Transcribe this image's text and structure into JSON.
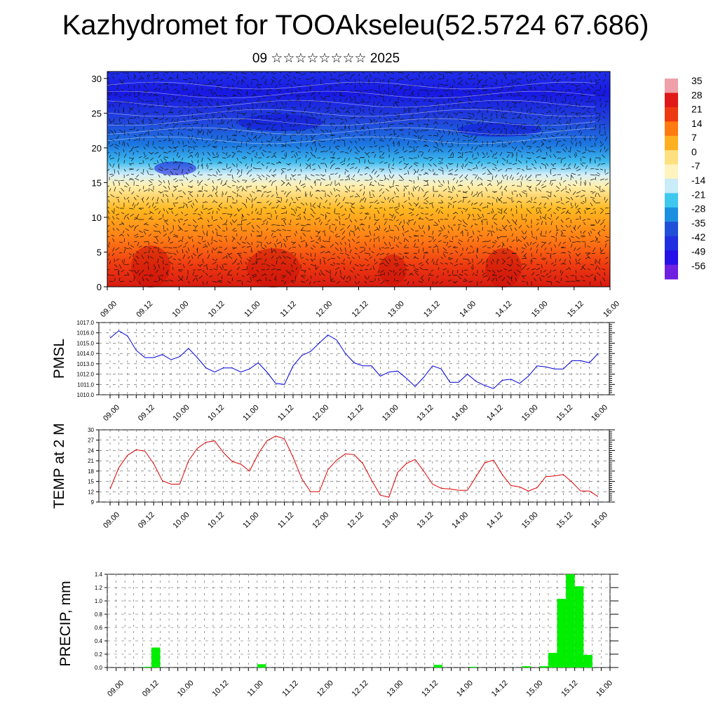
{
  "title": "Kazhydromet for TOOAkseleu(52.5724 67.686)",
  "subtitle": "09 ☆☆☆☆☆☆☆☆ 2025",
  "time_labels": [
    "09.00",
    "09.12",
    "10.00",
    "10.12",
    "11.00",
    "11.12",
    "12.00",
    "12.12",
    "13.00",
    "13.12",
    "14.00",
    "14.12",
    "15.00",
    "15.12",
    "16.00"
  ],
  "chart_data": [
    {
      "type": "heatmap",
      "name": "cross-section",
      "y_ticks": [
        0,
        5,
        10,
        15,
        20,
        25,
        30
      ],
      "ylim": [
        0,
        31
      ],
      "colorbar_labels": [
        "35",
        "28",
        "21",
        "14",
        "7",
        "0",
        "-7",
        "-14",
        "-21",
        "-28",
        "-35",
        "-42",
        "-49",
        "-56"
      ],
      "colorbar_colors": [
        "#f0a0a8",
        "#e01818",
        "#ee3a10",
        "#ff7a10",
        "#ffb020",
        "#ffe080",
        "#fff4c0",
        "#c8ecf8",
        "#3ec8f0",
        "#1c90e0",
        "#2050d8",
        "#2030e0",
        "#2810e8",
        "#7020e0"
      ]
    },
    {
      "type": "line",
      "ylabel": "PMSL",
      "color": "#0000dd",
      "y_ticks": [
        "1010.0",
        "1011.0",
        "1012.0",
        "1013.0",
        "1014.0",
        "1015.0",
        "1016.0",
        "1017.0"
      ],
      "ylim": [
        1010,
        1017
      ],
      "values": [
        1015.5,
        1016.2,
        1015.7,
        1014.3,
        1013.6,
        1013.6,
        1013.9,
        1013.4,
        1013.7,
        1014.5,
        1013.6,
        1012.6,
        1012.2,
        1012.6,
        1012.6,
        1012.2,
        1012.5,
        1013.1,
        1012.2,
        1011.1,
        1011.0,
        1012.8,
        1013.8,
        1014.2,
        1015.0,
        1015.8,
        1015.3,
        1014.0,
        1013.1,
        1012.8,
        1012.8,
        1011.8,
        1012.2,
        1012.3,
        1011.6,
        1010.8,
        1011.7,
        1012.8,
        1012.5,
        1011.2,
        1011.2,
        1012.0,
        1011.3,
        1010.9,
        1010.6,
        1011.4,
        1011.5,
        1011.1,
        1011.8,
        1012.8,
        1012.7,
        1012.5,
        1012.5,
        1013.3,
        1013.3,
        1013.1,
        1014.0
      ]
    },
    {
      "type": "line",
      "ylabel": "TEMP at 2 M",
      "color": "#dd0000",
      "y_ticks": [
        "9",
        "12",
        "15",
        "18",
        "21",
        "24",
        "27",
        "30"
      ],
      "ylim": [
        9,
        30
      ],
      "values": [
        12.8,
        19.0,
        22.6,
        24.2,
        23.8,
        20.2,
        15.2,
        14.2,
        14.2,
        21.0,
        24.6,
        26.4,
        26.8,
        23.4,
        20.8,
        20.0,
        18.0,
        23.0,
        26.8,
        28.2,
        27.4,
        22.0,
        15.8,
        12.0,
        12.0,
        18.4,
        21.2,
        23.0,
        22.8,
        20.2,
        15.4,
        11.0,
        10.4,
        17.6,
        20.2,
        21.4,
        18.0,
        14.2,
        13.0,
        12.8,
        12.4,
        12.4,
        16.4,
        20.4,
        21.2,
        17.0,
        13.8,
        13.4,
        12.2,
        13.2,
        16.4,
        16.6,
        17.0,
        14.8,
        12.2,
        12.2,
        10.6
      ]
    },
    {
      "type": "bar",
      "ylabel": "PRECIP, mm",
      "color": "#00ee00",
      "y_ticks": [
        "0.0",
        "0.2",
        "0.4",
        "0.6",
        "0.8",
        "1.0",
        "1.2",
        "1.4"
      ],
      "ylim": [
        0,
        1.4
      ],
      "values": [
        0,
        0,
        0,
        0,
        0.01,
        0.3,
        0,
        0,
        0,
        0,
        0,
        0,
        0,
        0,
        0,
        0,
        0,
        0.05,
        0,
        0,
        0,
        0,
        0,
        0,
        0,
        0,
        0,
        0,
        0,
        0,
        0,
        0,
        0,
        0,
        0,
        0,
        0,
        0.04,
        0,
        0,
        0,
        0.01,
        0,
        0,
        0,
        0,
        0,
        0.02,
        0,
        0.02,
        0.22,
        1.03,
        1.4,
        1.22,
        0.19,
        0,
        0
      ]
    }
  ]
}
